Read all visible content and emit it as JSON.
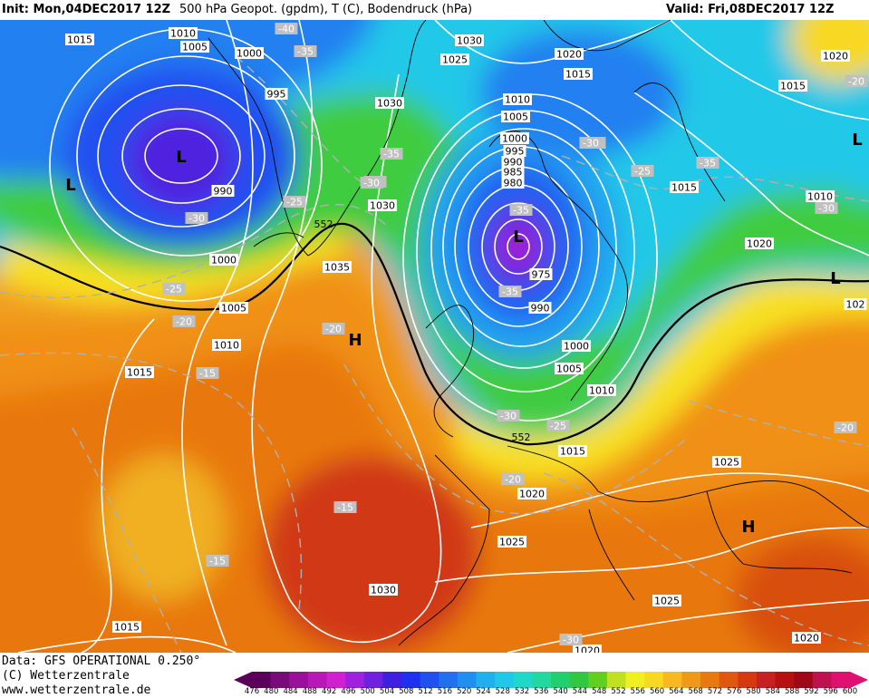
{
  "header": {
    "init": "Init: Mon,04DEC2017 12Z",
    "title": "500 hPa Geopot. (gpdm), T (C), Bodendruck (hPa)",
    "valid": "Valid: Fri,08DEC2017 12Z"
  },
  "footer": {
    "data_line": "Data: GFS OPERATIONAL 0.250°",
    "copyright": "(C) Wetterzentrale",
    "url": "www.wetterzentrale.de"
  },
  "legend": {
    "values": [
      "476",
      "480",
      "484",
      "488",
      "492",
      "496",
      "500",
      "504",
      "508",
      "512",
      "516",
      "520",
      "524",
      "528",
      "532",
      "536",
      "540",
      "544",
      "548",
      "552",
      "556",
      "560",
      "564",
      "568",
      "572",
      "576",
      "580",
      "584",
      "588",
      "592",
      "596",
      "600"
    ],
    "colors": [
      "#5a005a",
      "#7a0a7a",
      "#9a109a",
      "#b818b8",
      "#d020d0",
      "#a020e0",
      "#7020e0",
      "#4020e0",
      "#2030f0",
      "#2050f0",
      "#2070f0",
      "#2090f0",
      "#20b0f0",
      "#20c8e8",
      "#20d8c8",
      "#20d8a0",
      "#20d070",
      "#30c840",
      "#60d020",
      "#c0e020",
      "#f0f020",
      "#f8d820",
      "#f8b820",
      "#f09818",
      "#e87810",
      "#e05810",
      "#d83810",
      "#c82020",
      "#b81010",
      "#a00818",
      "#c01050",
      "#e01070"
    ]
  },
  "pressure_labels": [
    {
      "text": "1015"
    },
    {
      "text": "1010"
    },
    {
      "text": "1005"
    },
    {
      "text": "1000"
    },
    {
      "text": "995"
    },
    {
      "text": "990"
    },
    {
      "text": "1000"
    },
    {
      "text": "1005"
    },
    {
      "text": "1010"
    },
    {
      "text": "1015"
    },
    {
      "text": "1030"
    },
    {
      "text": "1025"
    },
    {
      "text": "1030"
    },
    {
      "text": "1030"
    },
    {
      "text": "1035"
    },
    {
      "text": "1020"
    },
    {
      "text": "1015"
    },
    {
      "text": "1010"
    },
    {
      "text": "1005"
    },
    {
      "text": "1000"
    },
    {
      "text": "995"
    },
    {
      "text": "990"
    },
    {
      "text": "985"
    },
    {
      "text": "980"
    },
    {
      "text": "975"
    },
    {
      "text": "990"
    },
    {
      "text": "1000"
    },
    {
      "text": "1005"
    },
    {
      "text": "1010"
    },
    {
      "text": "1015"
    },
    {
      "text": "1020"
    },
    {
      "text": "1025"
    },
    {
      "text": "1030"
    },
    {
      "text": "1015"
    },
    {
      "text": "1020"
    },
    {
      "text": "1015"
    },
    {
      "text": "1010"
    },
    {
      "text": "1020"
    },
    {
      "text": "1015"
    },
    {
      "text": "1025"
    },
    {
      "text": "1025"
    },
    {
      "text": "1020"
    },
    {
      "text": "1020"
    },
    {
      "text": "1030"
    },
    {
      "text": "1015"
    },
    {
      "text": "102"
    }
  ],
  "temp_labels": [
    {
      "text": "-40"
    },
    {
      "text": "-35"
    },
    {
      "text": "-30"
    },
    {
      "text": "-25"
    },
    {
      "text": "-20"
    },
    {
      "text": "-15"
    },
    {
      "text": "-25"
    },
    {
      "text": "-30"
    },
    {
      "text": "-35"
    },
    {
      "text": "-20"
    },
    {
      "text": "-15"
    },
    {
      "text": "-15"
    },
    {
      "text": "-35"
    },
    {
      "text": "-30"
    },
    {
      "text": "-35"
    },
    {
      "text": "-30"
    },
    {
      "text": "-25"
    },
    {
      "text": "-35"
    },
    {
      "text": "-30"
    },
    {
      "text": "-30"
    },
    {
      "text": "-25"
    },
    {
      "text": "-20"
    },
    {
      "text": "-20"
    },
    {
      "text": "-20"
    },
    {
      "text": "-30"
    },
    {
      "text": "-30"
    }
  ],
  "height_labels": [
    {
      "text": "552"
    },
    {
      "text": "552"
    }
  ],
  "centers": [
    {
      "text": "L"
    },
    {
      "text": "L"
    },
    {
      "text": "L"
    },
    {
      "text": "L"
    },
    {
      "text": "L"
    },
    {
      "text": "H"
    },
    {
      "text": "H"
    }
  ]
}
